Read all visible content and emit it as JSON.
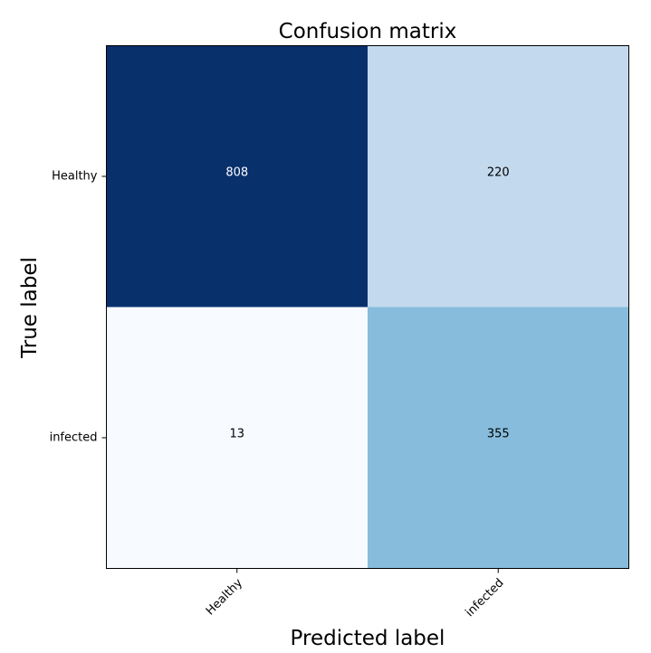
{
  "chart_data": {
    "type": "heatmap",
    "title": "Confusion matrix",
    "xlabel": "Predicted label",
    "ylabel": "True label",
    "x_categories": [
      "Healthy",
      "infected"
    ],
    "y_categories": [
      "Healthy",
      "infected"
    ],
    "values": [
      [
        808,
        220
      ],
      [
        13,
        355
      ]
    ],
    "colormap": "Blues",
    "cell_colors": [
      [
        "#08306b",
        "#c3daee"
      ],
      [
        "#f7fbff",
        "#87bcdc"
      ]
    ],
    "text_colors": [
      [
        "#ffffff",
        "#000000"
      ],
      [
        "#000000",
        "#000000"
      ]
    ],
    "grid": false,
    "legend": "none"
  }
}
